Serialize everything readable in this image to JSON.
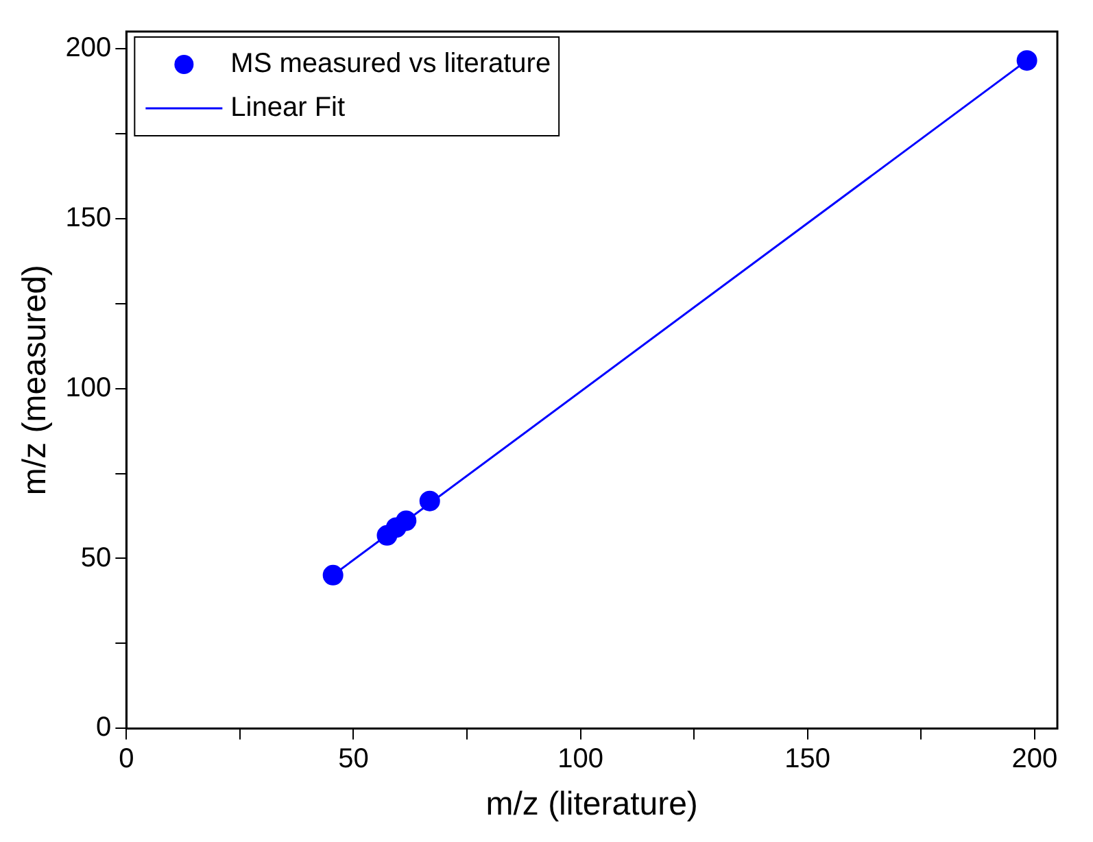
{
  "chart_data": {
    "type": "scatter",
    "xlabel": "m/z (literature)",
    "ylabel": "m/z (measured)",
    "xlim": [
      0,
      205
    ],
    "ylim": [
      0,
      205
    ],
    "xticks": [
      0,
      {
        "value": 25,
        "label": null
      },
      50,
      {
        "value": 75,
        "label": null
      },
      100,
      {
        "value": 125,
        "label": null
      },
      150,
      {
        "value": 175,
        "label": null
      },
      200
    ],
    "yticks": [
      0,
      {
        "value": 25,
        "label": null
      },
      50,
      {
        "value": 75,
        "label": null
      },
      100,
      {
        "value": 125,
        "label": null
      },
      150,
      {
        "value": 175,
        "label": null
      },
      200
    ],
    "grid": false,
    "legend": "top left",
    "marker": "circle",
    "series": [
      {
        "name": "MS measured vs literature",
        "color": "#0000ff",
        "x": [
          45.5,
          57.4,
          59.4,
          61.6,
          66.8,
          198.3
        ],
        "values": [
          45.1,
          56.8,
          59.1,
          61.1,
          66.9,
          196.5
        ]
      },
      {
        "name": "Linear Fit",
        "type": "line",
        "color": "#0000ff",
        "line_style": "solid",
        "marker": "none",
        "x": [
          45.5,
          198.3
        ],
        "values": [
          45.1,
          196.5
        ]
      }
    ]
  }
}
